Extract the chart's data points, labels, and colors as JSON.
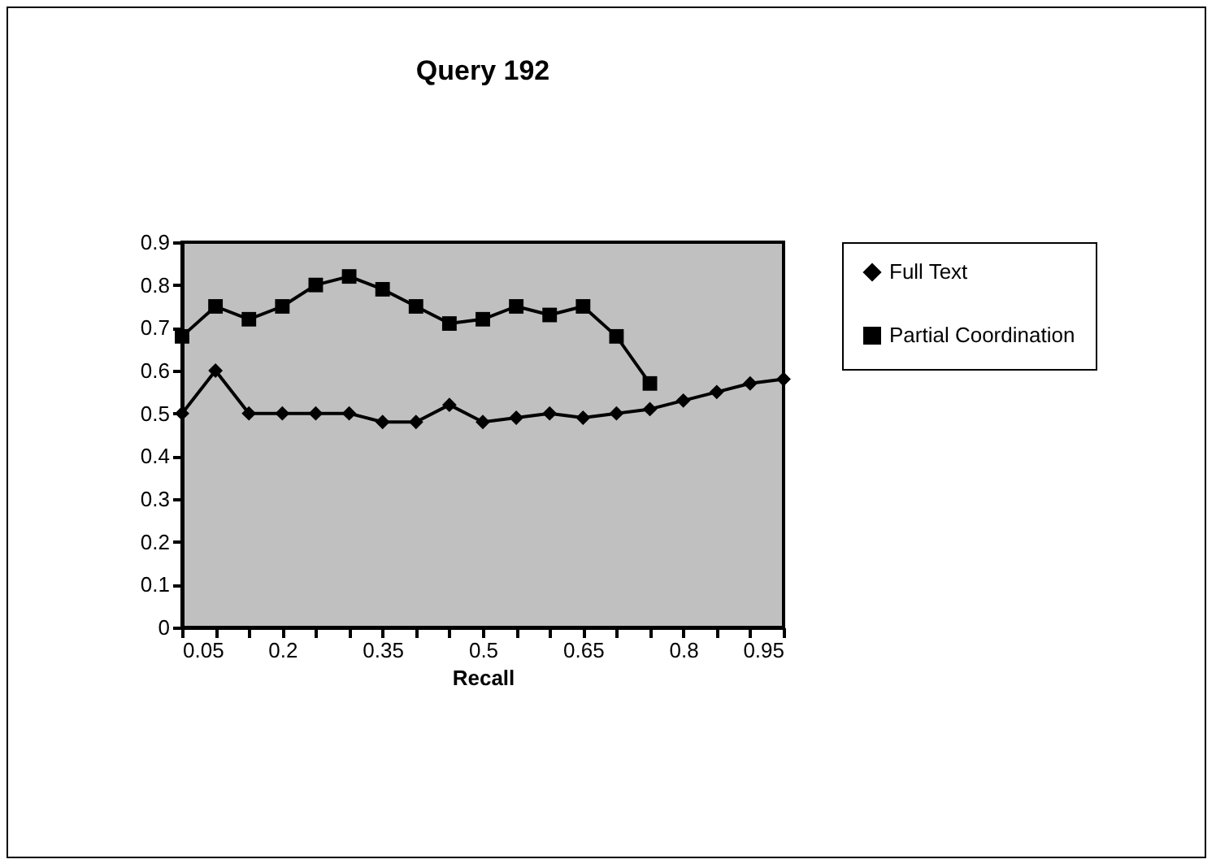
{
  "chart_data": {
    "type": "line",
    "title": "Query 192",
    "xlabel": "Recall",
    "x": [
      0.05,
      0.1,
      0.15,
      0.2,
      0.25,
      0.3,
      0.35,
      0.4,
      0.45,
      0.5,
      0.55,
      0.6,
      0.65,
      0.7,
      0.75,
      0.8,
      0.85,
      0.9,
      0.95
    ],
    "series": [
      {
        "name": "Full Text",
        "color": "#000000",
        "marker": "diamond",
        "values": [
          0.5,
          0.6,
          0.5,
          0.5,
          0.5,
          0.5,
          0.48,
          0.48,
          0.52,
          0.48,
          0.49,
          0.5,
          0.49,
          0.5,
          0.51,
          0.53,
          0.55,
          0.57,
          0.58
        ]
      },
      {
        "name": "Partial Coordination",
        "color": "#000000",
        "marker": "square",
        "values": [
          0.68,
          0.75,
          0.72,
          0.75,
          0.8,
          0.82,
          0.79,
          0.75,
          0.71,
          0.72,
          0.75,
          0.73,
          0.75,
          0.68,
          0.57,
          null,
          null,
          null,
          null
        ]
      }
    ],
    "xlim": [
      0.05,
      0.95
    ],
    "xticks": [
      0.05,
      {
        "value": 0.1,
        "label": null
      },
      {
        "value": 0.15,
        "label": null
      },
      0.2,
      {
        "value": 0.25,
        "label": null
      },
      {
        "value": 0.3,
        "label": null
      },
      0.35,
      {
        "value": 0.4,
        "label": null
      },
      {
        "value": 0.45,
        "label": null
      },
      0.5,
      {
        "value": 0.55,
        "label": null
      },
      {
        "value": 0.6,
        "label": null
      },
      0.65,
      {
        "value": 0.7,
        "label": null
      },
      {
        "value": 0.75,
        "label": null
      },
      0.8,
      {
        "value": 0.85,
        "label": null
      },
      {
        "value": 0.9,
        "label": null
      },
      0.95
    ],
    "ylim": [
      0,
      0.9
    ],
    "yticks": [
      0,
      0.1,
      0.2,
      0.3,
      0.4,
      0.5,
      0.6,
      0.7,
      0.8,
      0.9
    ],
    "grid": false,
    "legend": "right",
    "marker": "circle",
    "line_style": "solid"
  }
}
